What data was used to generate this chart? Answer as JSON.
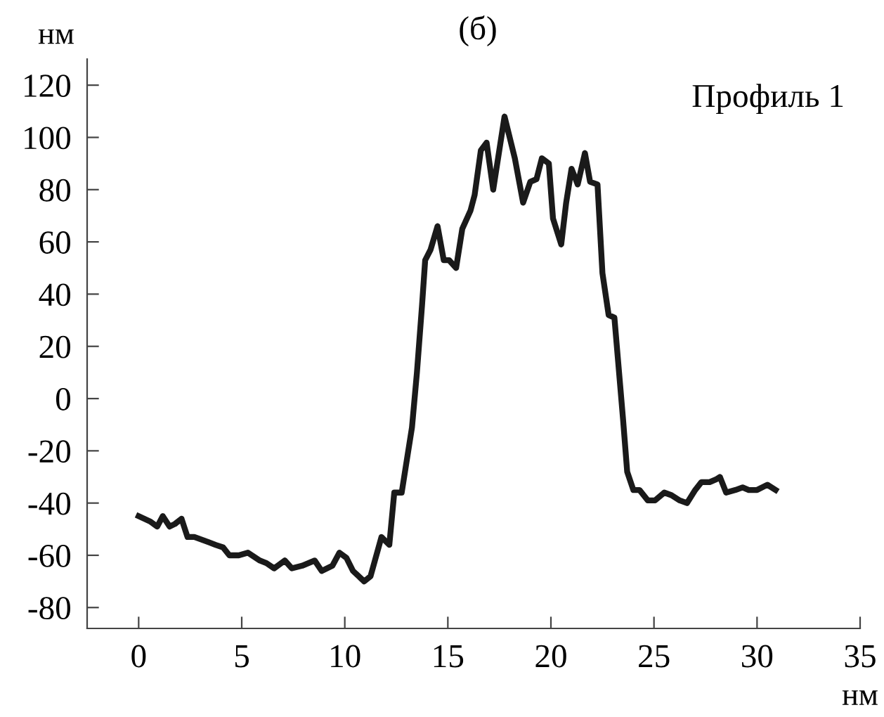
{
  "chart_data": {
    "type": "line",
    "title": "(б)",
    "xlabel": "нм",
    "ylabel": "нм",
    "annotations": [
      "Профиль 1"
    ],
    "xlim": [
      -2.5,
      35
    ],
    "xticks": [
      0,
      5,
      10,
      15,
      20,
      25,
      30,
      35
    ],
    "ylim": [
      -88,
      130
    ],
    "yticks": [
      -80,
      -60,
      -40,
      -20,
      0,
      20,
      40,
      60,
      80,
      100,
      120
    ],
    "grid": false,
    "legend": false,
    "marker": "none",
    "line_style": "solid",
    "series": [
      {
        "color": "#1a1a1a",
        "x": [
          0,
          0.55,
          0.9,
          1.17,
          1.5,
          1.76,
          2.08,
          2.37,
          2.7,
          3.05,
          3.4,
          3.73,
          4.1,
          4.4,
          4.86,
          5.3,
          5.88,
          6.2,
          6.57,
          7.09,
          7.43,
          7.93,
          8.54,
          8.88,
          9.4,
          9.74,
          10.08,
          10.4,
          10.94,
          11.25,
          11.78,
          12.16,
          12.4,
          12.76,
          13.0,
          13.26,
          13.5,
          13.75,
          13.9,
          14.16,
          14.5,
          14.8,
          15.06,
          15.4,
          15.7,
          16.1,
          16.3,
          16.6,
          16.88,
          17.2,
          17.75,
          18.25,
          18.65,
          19.0,
          19.3,
          19.56,
          19.9,
          20.1,
          20.5,
          20.74,
          21.0,
          21.3,
          21.65,
          21.9,
          22.26,
          22.5,
          22.8,
          23.08,
          23.5,
          23.7,
          24.0,
          24.3,
          24.7,
          25.05,
          25.5,
          25.85,
          26.25,
          26.6,
          27.0,
          27.3,
          27.7,
          28.0,
          28.2,
          28.5,
          28.95,
          29.3,
          29.6,
          30.0,
          30.5,
          30.9
        ],
        "values": [
          -45,
          -47,
          -49,
          -45,
          -49,
          -48,
          -46,
          -53,
          -53,
          -54,
          -55,
          -56,
          -57,
          -60,
          -60,
          -59,
          -62,
          -63,
          -65,
          -62,
          -65,
          -64,
          -62,
          -66,
          -64,
          -59,
          -61,
          -66,
          -70,
          -68,
          -53,
          -56,
          -36,
          -36,
          -24,
          -11,
          10,
          36,
          53,
          57,
          66,
          53,
          53,
          50,
          65,
          72,
          78,
          95,
          98,
          80,
          108,
          92,
          75,
          83,
          84,
          92,
          90,
          69,
          59,
          75,
          88,
          82,
          94,
          83,
          82,
          48,
          32,
          31,
          -8,
          -28,
          -35,
          -35,
          -39,
          -39,
          -36,
          -37,
          -39,
          -40,
          -35,
          -32,
          -32,
          -31,
          -30,
          -36,
          -35,
          -34,
          -35,
          -35,
          -33,
          -35
        ]
      }
    ]
  }
}
